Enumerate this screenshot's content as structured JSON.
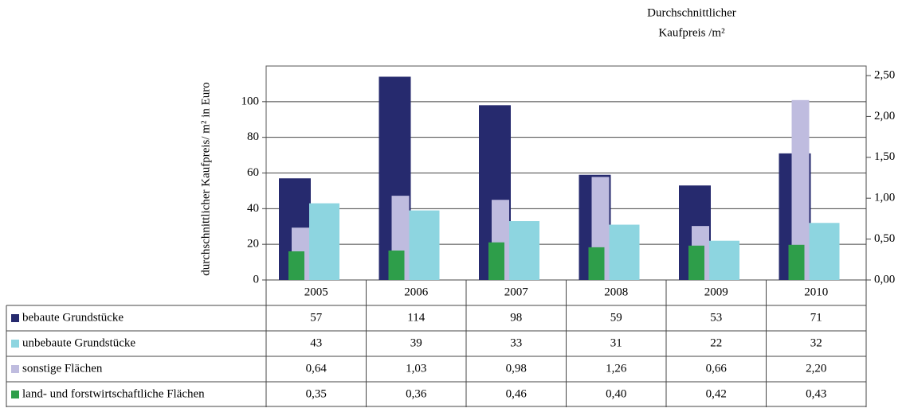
{
  "chart_data": {
    "type": "bar",
    "ylabel": "durchschnittlicher Kaufpreis/ m² in Euro",
    "y2label": [
      "Durchschnittlicher",
      "Kaufpreis /m²"
    ],
    "categories": [
      "2005",
      "2006",
      "2007",
      "2008",
      "2009",
      "2010"
    ],
    "ylim": [
      0,
      120
    ],
    "yticks": [
      0,
      20,
      40,
      60,
      80,
      100
    ],
    "y2lim": [
      0,
      2.5
    ],
    "y2ticks": [
      {
        "value": 0,
        "label": "0,00"
      },
      {
        "value": 0.5,
        "label": "0,50"
      },
      {
        "value": 1,
        "label": "1,00"
      },
      {
        "value": 1.5,
        "label": "1,50"
      },
      {
        "value": 2,
        "label": "2,00"
      },
      {
        "value": 2.5,
        "label": "2,50"
      }
    ],
    "grid": true,
    "series": [
      {
        "name": "bebaute Grundstücke",
        "color": "#262a6e",
        "values": [
          57,
          114,
          98,
          59,
          53,
          71
        ]
      },
      {
        "name": "unbebaute Grundstücke",
        "color": "#8dd5e0",
        "values": [
          43,
          39,
          33,
          31,
          22,
          32
        ]
      },
      {
        "name": "sonstige Flächen",
        "color": "#bfbcdf",
        "axis": "y2",
        "values": [
          0.64,
          1.03,
          0.98,
          1.26,
          0.66,
          2.2
        ],
        "value_labels": [
          "0,64",
          "1,03",
          "0,98",
          "1,26",
          "0,66",
          "2,20"
        ]
      },
      {
        "name": "land- und forstwirtschaftliche Flächen",
        "color": "#2e9e4a",
        "axis": "y2",
        "values": [
          0.35,
          0.36,
          0.46,
          0.4,
          0.42,
          0.43
        ],
        "value_labels": [
          "0,35",
          "0,36",
          "0,46",
          "0,40",
          "0,42",
          "0,43"
        ]
      }
    ]
  }
}
